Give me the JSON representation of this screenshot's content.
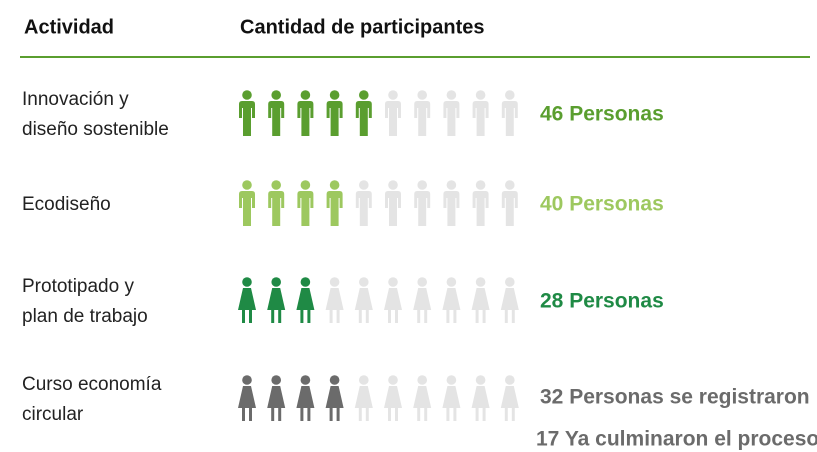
{
  "header": {
    "activity": "Actividad",
    "participants": "Cantidad de participantes"
  },
  "icons_total": 10,
  "rows": [
    {
      "label": [
        "Innovación y",
        "diseño sostenible"
      ],
      "icons_filled": 5,
      "figure": "male",
      "color": "#5a9e2f",
      "value_text": [
        "46 Personas"
      ]
    },
    {
      "label": [
        "Ecodiseño"
      ],
      "icons_filled": 4,
      "figure": "male",
      "color": "#9dc85f",
      "value_text": [
        "40 Personas"
      ]
    },
    {
      "label": [
        "Prototipado y",
        "plan de trabajo"
      ],
      "icons_filled": 3,
      "figure": "female",
      "color": "#1f8a45",
      "value_text": [
        "28 Personas"
      ]
    },
    {
      "label": [
        "Curso economía",
        "circular"
      ],
      "icons_filled": 4,
      "figure": "female",
      "color": "#6b6b6b",
      "value_text": [
        "32 Personas se registraron",
        "17 Ya culminaron el proceso"
      ]
    }
  ],
  "empty_color": "#e4e4e4"
}
